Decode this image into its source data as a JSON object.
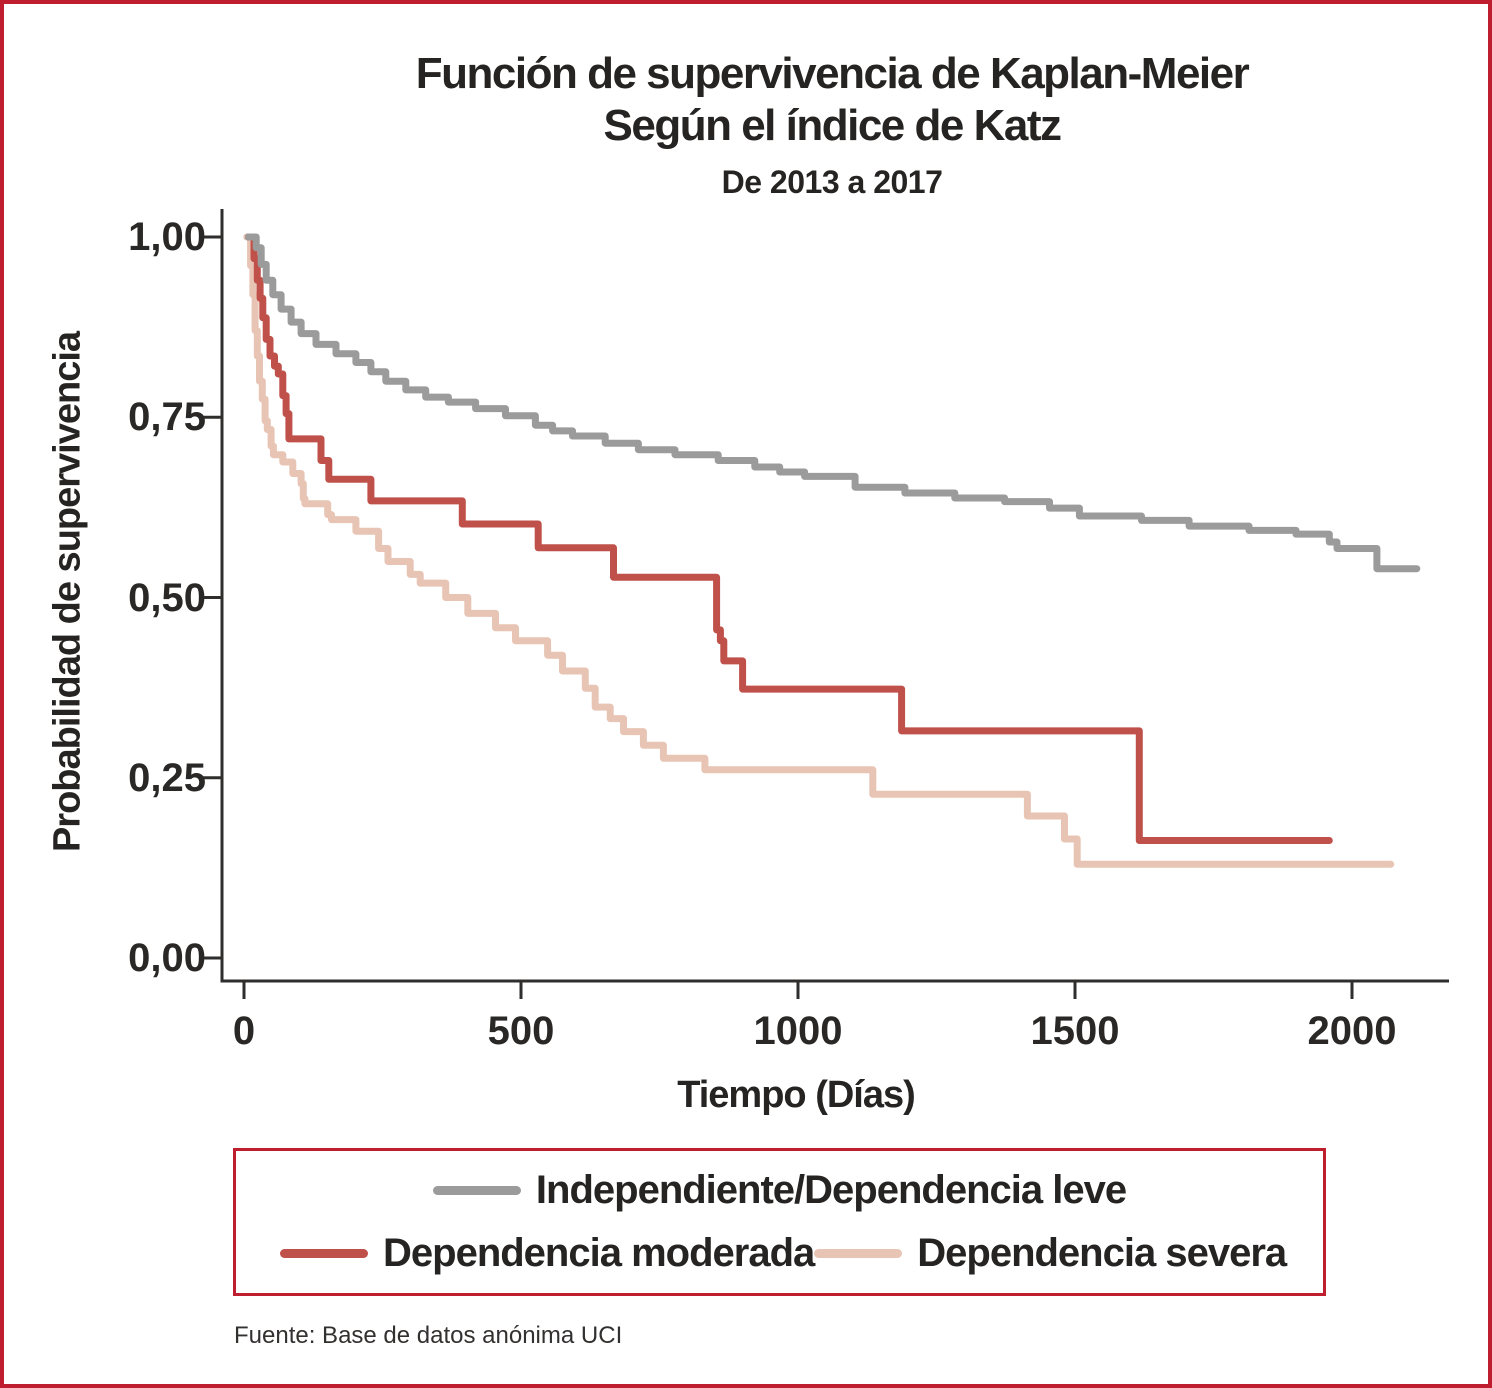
{
  "header": {
    "title_line1": "Función de supervivencia de Kaplan-Meier",
    "title_line2": "Según el índice de Katz",
    "subtitle": "De 2013 a 2017"
  },
  "footer": {
    "source": "Fuente: Base de datos anónima UCI"
  },
  "colors": {
    "frame": "#be1e2d",
    "axis": "#2f2e2d",
    "text": "#272625"
  },
  "chart_data": {
    "type": "line",
    "step": true,
    "title": "Función de supervivencia de Kaplan-Meier Según el índice de Katz",
    "subtitle": "De 2013 a 2017",
    "xlabel": "Tiempo (Días)",
    "ylabel": "Probabilidad de supervivencia",
    "xlim": [
      0,
      2180
    ],
    "ylim": [
      0,
      1.0
    ],
    "grid": false,
    "legend_position": "bottom",
    "x_ticks": [
      {
        "value": 0,
        "label": "0"
      },
      {
        "value": 500,
        "label": "500"
      },
      {
        "value": 1000,
        "label": "1000"
      },
      {
        "value": 1500,
        "label": "1500"
      },
      {
        "value": 2000,
        "label": "2000"
      }
    ],
    "y_ticks": [
      {
        "value": 0.0,
        "label": "0,00"
      },
      {
        "value": 0.25,
        "label": "0,25"
      },
      {
        "value": 0.5,
        "label": "0,50"
      },
      {
        "value": 0.75,
        "label": "0,75"
      },
      {
        "value": 1.0,
        "label": "1,00"
      }
    ],
    "series": [
      {
        "name": "Independiente/Dependencia leve",
        "color": "#9b9b9b",
        "points": [
          [
            8,
            1.0
          ],
          [
            14,
            1.0
          ],
          [
            22,
            0.985
          ],
          [
            31,
            0.962
          ],
          [
            40,
            0.94
          ],
          [
            52,
            0.92
          ],
          [
            67,
            0.9
          ],
          [
            85,
            0.882
          ],
          [
            103,
            0.866
          ],
          [
            130,
            0.851
          ],
          [
            166,
            0.838
          ],
          [
            202,
            0.826
          ],
          [
            229,
            0.813
          ],
          [
            256,
            0.8
          ],
          [
            292,
            0.788
          ],
          [
            328,
            0.778
          ],
          [
            369,
            0.771
          ],
          [
            418,
            0.762
          ],
          [
            472,
            0.752
          ],
          [
            526,
            0.739
          ],
          [
            557,
            0.731
          ],
          [
            593,
            0.724
          ],
          [
            652,
            0.714
          ],
          [
            712,
            0.705
          ],
          [
            778,
            0.698
          ],
          [
            856,
            0.69
          ],
          [
            922,
            0.681
          ],
          [
            967,
            0.674
          ],
          [
            1012,
            0.668
          ],
          [
            1103,
            0.653
          ],
          [
            1193,
            0.645
          ],
          [
            1283,
            0.638
          ],
          [
            1373,
            0.633
          ],
          [
            1454,
            0.624
          ],
          [
            1508,
            0.613
          ],
          [
            1620,
            0.607
          ],
          [
            1706,
            0.599
          ],
          [
            1814,
            0.593
          ],
          [
            1899,
            0.588
          ],
          [
            1959,
            0.577
          ],
          [
            1973,
            0.568
          ],
          [
            2045,
            0.54
          ],
          [
            2117,
            0.54
          ]
        ]
      },
      {
        "name": "Dependencia moderada",
        "color": "#c0514a",
        "points": [
          [
            8,
            1.0
          ],
          [
            18,
            0.97
          ],
          [
            24,
            0.94
          ],
          [
            29,
            0.915
          ],
          [
            34,
            0.888
          ],
          [
            40,
            0.858
          ],
          [
            47,
            0.835
          ],
          [
            55,
            0.821
          ],
          [
            62,
            0.81
          ],
          [
            70,
            0.78
          ],
          [
            76,
            0.755
          ],
          [
            81,
            0.72
          ],
          [
            139,
            0.69
          ],
          [
            153,
            0.664
          ],
          [
            229,
            0.634
          ],
          [
            394,
            0.602
          ],
          [
            531,
            0.569
          ],
          [
            667,
            0.528
          ],
          [
            853,
            0.455
          ],
          [
            860,
            0.44
          ],
          [
            866,
            0.412
          ],
          [
            900,
            0.373
          ],
          [
            1187,
            0.315
          ],
          [
            1616,
            0.163
          ],
          [
            1959,
            0.163
          ]
        ]
      },
      {
        "name": "Dependencia severa",
        "color": "#e8c4b4",
        "points": [
          [
            5,
            1.0
          ],
          [
            12,
            0.96
          ],
          [
            16,
            0.92
          ],
          [
            20,
            0.87
          ],
          [
            24,
            0.835
          ],
          [
            28,
            0.8
          ],
          [
            33,
            0.775
          ],
          [
            38,
            0.745
          ],
          [
            42,
            0.733
          ],
          [
            49,
            0.71
          ],
          [
            53,
            0.698
          ],
          [
            70,
            0.688
          ],
          [
            88,
            0.672
          ],
          [
            103,
            0.658
          ],
          [
            107,
            0.637
          ],
          [
            110,
            0.63
          ],
          [
            151,
            0.615
          ],
          [
            158,
            0.608
          ],
          [
            202,
            0.592
          ],
          [
            243,
            0.568
          ],
          [
            260,
            0.55
          ],
          [
            300,
            0.532
          ],
          [
            318,
            0.52
          ],
          [
            364,
            0.5
          ],
          [
            404,
            0.478
          ],
          [
            454,
            0.458
          ],
          [
            490,
            0.44
          ],
          [
            548,
            0.42
          ],
          [
            575,
            0.398
          ],
          [
            616,
            0.374
          ],
          [
            634,
            0.348
          ],
          [
            661,
            0.332
          ],
          [
            685,
            0.314
          ],
          [
            721,
            0.295
          ],
          [
            757,
            0.277
          ],
          [
            832,
            0.261
          ],
          [
            1135,
            0.227
          ],
          [
            1414,
            0.197
          ],
          [
            1481,
            0.165
          ],
          [
            1504,
            0.13
          ],
          [
            2070,
            0.13
          ]
        ]
      }
    ]
  }
}
